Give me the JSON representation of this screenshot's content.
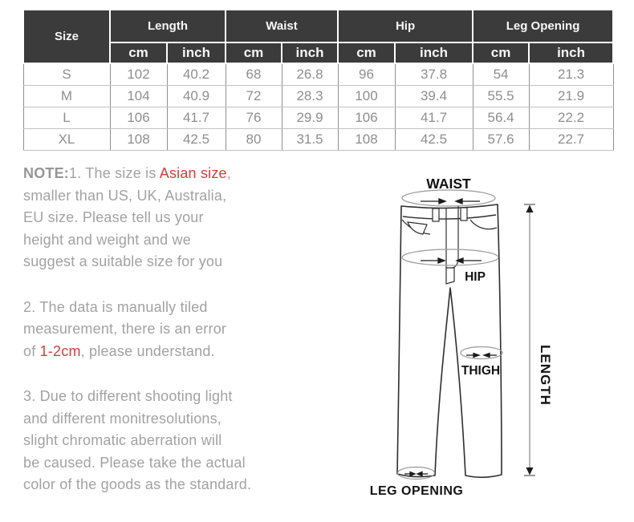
{
  "colors": {
    "header_bg": "#3b3b3b",
    "header_text": "#f7f7f7",
    "cell_text": "#8e8e8e",
    "note_text": "#a2a2a2",
    "accent_red": "#d63c3c",
    "outline_dark": "#2e2e2e",
    "measure_gray": "#9a9a9a"
  },
  "table": {
    "size_header": "Size",
    "groups": [
      {
        "label": "Length"
      },
      {
        "label": "Waist"
      },
      {
        "label": "Hip"
      },
      {
        "label": "Leg Opening"
      }
    ],
    "sub_headers": [
      "cm",
      "inch",
      "cm",
      "inch",
      "cm",
      "inch",
      "cm",
      "inch"
    ],
    "rows": [
      {
        "size": "S",
        "values": [
          "102",
          "40.2",
          "68",
          "26.8",
          "96",
          "37.8",
          "54",
          "21.3"
        ]
      },
      {
        "size": "M",
        "values": [
          "104",
          "40.9",
          "72",
          "28.3",
          "100",
          "39.4",
          "55.5",
          "21.9"
        ]
      },
      {
        "size": "L",
        "values": [
          "106",
          "41.7",
          "76",
          "29.9",
          "106",
          "41.7",
          "56.4",
          "22.2"
        ]
      },
      {
        "size": "XL",
        "values": [
          "108",
          "42.5",
          "80",
          "31.5",
          "108",
          "42.5",
          "57.6",
          "22.7"
        ]
      }
    ]
  },
  "notes": [
    {
      "segments": [
        {
          "text": "NOTE:",
          "style": "bold"
        },
        {
          "text": "1. The size is ",
          "style": "normal"
        },
        {
          "text": "Asian size",
          "style": "red"
        },
        {
          "text": ",\nsmaller than US, UK, Australia,\nEU size. Please tell us your\nheight and weight and we\nsuggest a suitable size for you",
          "style": "normal"
        }
      ]
    },
    {
      "segments": [
        {
          "text": "2. The data is manually tiled\nmeasurement, there is an error\nof ",
          "style": "normal"
        },
        {
          "text": "1-2cm",
          "style": "red"
        },
        {
          "text": ", please understand.",
          "style": "normal"
        }
      ]
    },
    {
      "segments": [
        {
          "text": "3. Due to different shooting light\nand different monitresolutions,\nslight chromatic aberration will\nbe caused. Please take the actual\ncolor of the goods as the standard.",
          "style": "normal"
        }
      ]
    }
  ],
  "diagram": {
    "waist_label": "WAIST",
    "hip_label": "HIP",
    "thigh_label": "THIGH",
    "leg_opening_label": "LEG OPENING",
    "length_label": "LENGTH"
  }
}
